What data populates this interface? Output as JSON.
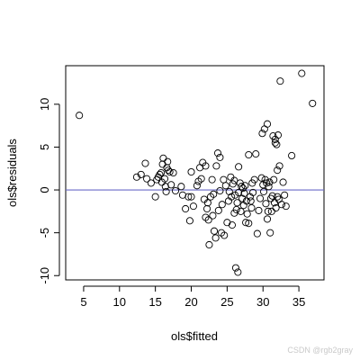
{
  "chart_data": {
    "type": "scatter",
    "title": "",
    "xlabel": "ols$fitted",
    "ylabel": "ols$residuals",
    "xlim": [
      2.5,
      38.5
    ],
    "ylim": [
      -10.5,
      14.5
    ],
    "xticks": [
      5,
      10,
      15,
      20,
      25,
      30,
      35
    ],
    "yticks": [
      -10,
      -5,
      0,
      5,
      10
    ],
    "reference_line": {
      "y": 0,
      "color": "#6b6bc8"
    },
    "marker": "open-circle",
    "points": [
      [
        4.4,
        8.7
      ],
      [
        12.4,
        1.5
      ],
      [
        13.0,
        1.8
      ],
      [
        13.6,
        3.1
      ],
      [
        13.8,
        1.3
      ],
      [
        14.4,
        0.8
      ],
      [
        15.0,
        -0.8
      ],
      [
        15.2,
        1.2
      ],
      [
        15.4,
        1.5
      ],
      [
        15.6,
        1.8
      ],
      [
        15.8,
        2.0
      ],
      [
        15.9,
        0.9
      ],
      [
        16.0,
        3.0
      ],
      [
        16.1,
        3.7
      ],
      [
        16.3,
        1.3
      ],
      [
        16.4,
        0.4
      ],
      [
        16.5,
        -0.2
      ],
      [
        16.6,
        2.6
      ],
      [
        16.7,
        3.3
      ],
      [
        16.8,
        2.3
      ],
      [
        17.0,
        2.1
      ],
      [
        17.2,
        0.6
      ],
      [
        17.5,
        2.0
      ],
      [
        17.8,
        -0.1
      ],
      [
        18.6,
        0.4
      ],
      [
        18.8,
        -0.6
      ],
      [
        19.2,
        -2.2
      ],
      [
        19.6,
        -0.8
      ],
      [
        19.8,
        -3.6
      ],
      [
        20.0,
        -0.8
      ],
      [
        20.0,
        2.1
      ],
      [
        20.3,
        -1.9
      ],
      [
        20.8,
        0.5
      ],
      [
        21.0,
        1.0
      ],
      [
        21.2,
        2.6
      ],
      [
        21.4,
        1.3
      ],
      [
        21.6,
        3.2
      ],
      [
        21.8,
        -1.1
      ],
      [
        22.0,
        2.8
      ],
      [
        22.0,
        -3.2
      ],
      [
        22.2,
        -2.2
      ],
      [
        22.3,
        -1.5
      ],
      [
        22.4,
        -3.5
      ],
      [
        22.5,
        -6.4
      ],
      [
        22.7,
        -0.8
      ],
      [
        22.9,
        1.2
      ],
      [
        23.0,
        -3.0
      ],
      [
        23.1,
        -0.5
      ],
      [
        23.2,
        -4.8
      ],
      [
        23.4,
        -5.6
      ],
      [
        23.5,
        2.8
      ],
      [
        23.7,
        4.3
      ],
      [
        23.8,
        -2.4
      ],
      [
        24.0,
        -0.1
      ],
      [
        24.0,
        3.8
      ],
      [
        24.2,
        -5.0
      ],
      [
        24.3,
        -1.7
      ],
      [
        24.5,
        1.2
      ],
      [
        24.6,
        -5.3
      ],
      [
        24.8,
        0.5
      ],
      [
        25.0,
        -3.8
      ],
      [
        25.2,
        -1.3
      ],
      [
        25.3,
        -0.2
      ],
      [
        25.5,
        1.5
      ],
      [
        25.6,
        -0.8
      ],
      [
        25.7,
        -4.1
      ],
      [
        25.8,
        0.7
      ],
      [
        26.0,
        -2.7
      ],
      [
        26.0,
        1.1
      ],
      [
        26.1,
        -0.6
      ],
      [
        26.2,
        -9.1
      ],
      [
        26.3,
        -2.3
      ],
      [
        26.4,
        -1.5
      ],
      [
        26.5,
        -9.6
      ],
      [
        26.6,
        2.7
      ],
      [
        26.6,
        -0.3
      ],
      [
        26.8,
        0.8
      ],
      [
        26.9,
        -2.5
      ],
      [
        27.0,
        0.4
      ],
      [
        27.1,
        -1.0
      ],
      [
        27.2,
        0.2
      ],
      [
        27.3,
        -1.8
      ],
      [
        27.4,
        -0.4
      ],
      [
        27.5,
        0.5
      ],
      [
        27.6,
        -3.8
      ],
      [
        27.7,
        -1.3
      ],
      [
        27.8,
        -2.8
      ],
      [
        28.0,
        -3.9
      ],
      [
        28.0,
        4.1
      ],
      [
        28.2,
        -0.8
      ],
      [
        28.3,
        -1.3
      ],
      [
        28.4,
        -2.1
      ],
      [
        28.5,
        0.8
      ],
      [
        28.6,
        -0.3
      ],
      [
        28.8,
        1.2
      ],
      [
        29.0,
        4.2
      ],
      [
        29.2,
        -5.1
      ],
      [
        29.4,
        -2.4
      ],
      [
        29.6,
        -1.0
      ],
      [
        29.8,
        1.4
      ],
      [
        29.9,
        6.6
      ],
      [
        30.0,
        0.6
      ],
      [
        30.1,
        -0.2
      ],
      [
        30.2,
        7.1
      ],
      [
        30.3,
        1.2
      ],
      [
        30.4,
        -1.6
      ],
      [
        30.5,
        0.8
      ],
      [
        30.6,
        -3.4
      ],
      [
        30.6,
        7.7
      ],
      [
        30.7,
        -2.5
      ],
      [
        30.8,
        0.4
      ],
      [
        30.9,
        0.9
      ],
      [
        31.0,
        -5.0
      ],
      [
        31.1,
        -1.0
      ],
      [
        31.2,
        -2.5
      ],
      [
        31.3,
        -0.7
      ],
      [
        31.4,
        6.3
      ],
      [
        31.5,
        1.2
      ],
      [
        31.6,
        -1.5
      ],
      [
        31.7,
        5.5
      ],
      [
        31.7,
        5.9
      ],
      [
        31.8,
        -2.1
      ],
      [
        31.9,
        5.3
      ],
      [
        32.0,
        -0.8
      ],
      [
        32.0,
        2.3
      ],
      [
        32.1,
        6.4
      ],
      [
        32.2,
        -1.1
      ],
      [
        32.3,
        2.8
      ],
      [
        32.4,
        12.7
      ],
      [
        32.6,
        -1.7
      ],
      [
        32.8,
        0.9
      ],
      [
        33.0,
        -0.6
      ],
      [
        33.2,
        -1.9
      ],
      [
        34.0,
        4.0
      ],
      [
        35.4,
        13.6
      ],
      [
        36.9,
        10.1
      ]
    ]
  },
  "watermark": "CSDN @rgb2gray"
}
